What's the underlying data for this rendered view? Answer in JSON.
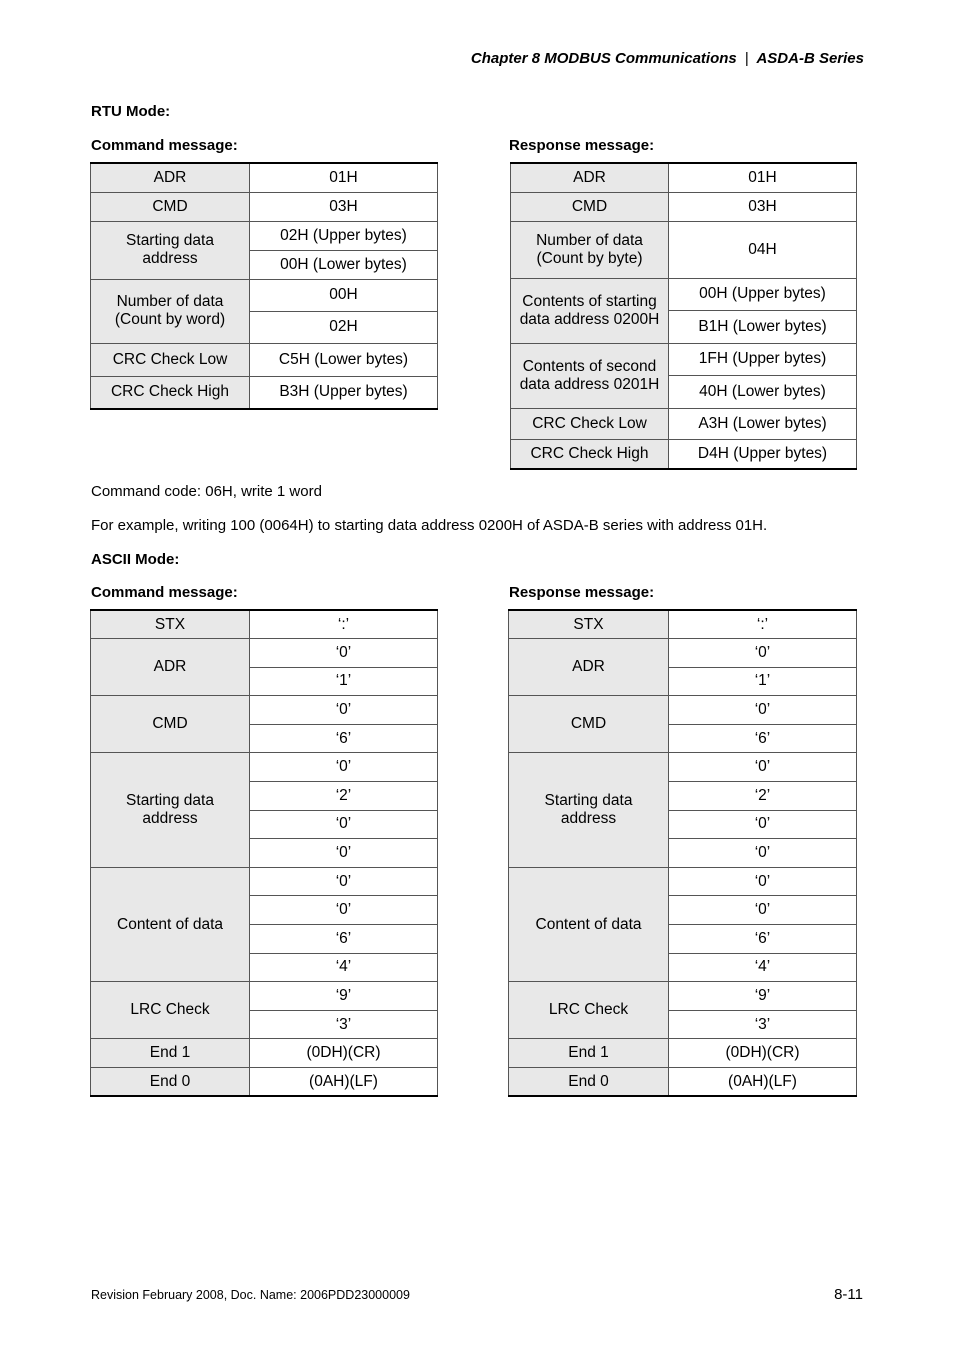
{
  "header": {
    "chapter": "Chapter 8  MODBUS Communications",
    "separator": "|",
    "series": "ASDA-B Series"
  },
  "rtu": {
    "title": "RTU Mode:",
    "command_title": "Command message:",
    "response_title": "Response message:",
    "command": [
      {
        "label": "ADR",
        "values": [
          "01H"
        ]
      },
      {
        "label": "CMD",
        "values": [
          "03H"
        ]
      },
      {
        "label": "Starting data address",
        "values": [
          "02H (Upper bytes)",
          "00H (Lower bytes)"
        ]
      },
      {
        "label": "Number of data (Count by word)",
        "values": [
          "00H",
          "02H"
        ]
      },
      {
        "label": "CRC Check Low",
        "values": [
          "C5H (Lower bytes)"
        ]
      },
      {
        "label": "CRC Check High",
        "values": [
          "B3H (Upper bytes)"
        ]
      }
    ],
    "response": [
      {
        "label": "ADR",
        "values": [
          "01H"
        ]
      },
      {
        "label": "CMD",
        "values": [
          "03H"
        ]
      },
      {
        "label": "Number of data (Count by byte)",
        "values": [
          "04H"
        ]
      },
      {
        "label": "Contents of starting data address 0200H",
        "values": [
          "00H (Upper bytes)",
          "B1H (Lower bytes)"
        ]
      },
      {
        "label": "Contents of second data address 0201H",
        "values": [
          "1FH (Upper bytes)",
          "40H (Lower bytes)"
        ]
      },
      {
        "label": "CRC Check Low",
        "values": [
          "A3H (Lower bytes)"
        ]
      },
      {
        "label": "CRC Check High",
        "values": [
          "D4H (Upper bytes)"
        ]
      }
    ]
  },
  "text": {
    "command_code": "Command code: 06H, write 1 word",
    "example": "For example, writing 100 (0064H) to starting data address 0200H of ASDA-B series with address 01H."
  },
  "ascii": {
    "title": "ASCII Mode:",
    "command_title": "Command message:",
    "response_title": "Response message:",
    "command": [
      {
        "label": "STX",
        "values": [
          "‘:’"
        ]
      },
      {
        "label": "ADR",
        "values": [
          "‘0’",
          "‘1’"
        ]
      },
      {
        "label": "CMD",
        "values": [
          "‘0’",
          "‘6’"
        ]
      },
      {
        "label": "Starting data address",
        "values": [
          "‘0’",
          "‘2’",
          "‘0’",
          "‘0’"
        ]
      },
      {
        "label": "Content of data",
        "values": [
          "‘0’",
          "‘0’",
          "‘6’",
          "‘4’"
        ]
      },
      {
        "label": "LRC Check",
        "values": [
          "‘9’",
          "‘3’"
        ]
      },
      {
        "label": "End 1",
        "values": [
          "(0DH)(CR)"
        ]
      },
      {
        "label": "End 0",
        "values": [
          "(0AH)(LF)"
        ]
      }
    ],
    "response": [
      {
        "label": "STX",
        "values": [
          "‘:’"
        ]
      },
      {
        "label": "ADR",
        "values": [
          "‘0’",
          "‘1’"
        ]
      },
      {
        "label": "CMD",
        "values": [
          "‘0’",
          "‘6’"
        ]
      },
      {
        "label": "Starting data address",
        "values": [
          "‘0’",
          "‘2’",
          "‘0’",
          "‘0’"
        ]
      },
      {
        "label": "Content of data",
        "values": [
          "‘0’",
          "‘0’",
          "‘6’",
          "‘4’"
        ]
      },
      {
        "label": "LRC Check",
        "values": [
          "‘9’",
          "‘3’"
        ]
      },
      {
        "label": "End 1",
        "values": [
          "(0DH)(CR)"
        ]
      },
      {
        "label": "End 0",
        "values": [
          "(0AH)(LF)"
        ]
      }
    ]
  },
  "footer": {
    "revision": "Revision February 2008, Doc. Name: 2006PDD23000009",
    "page": "8-11"
  }
}
